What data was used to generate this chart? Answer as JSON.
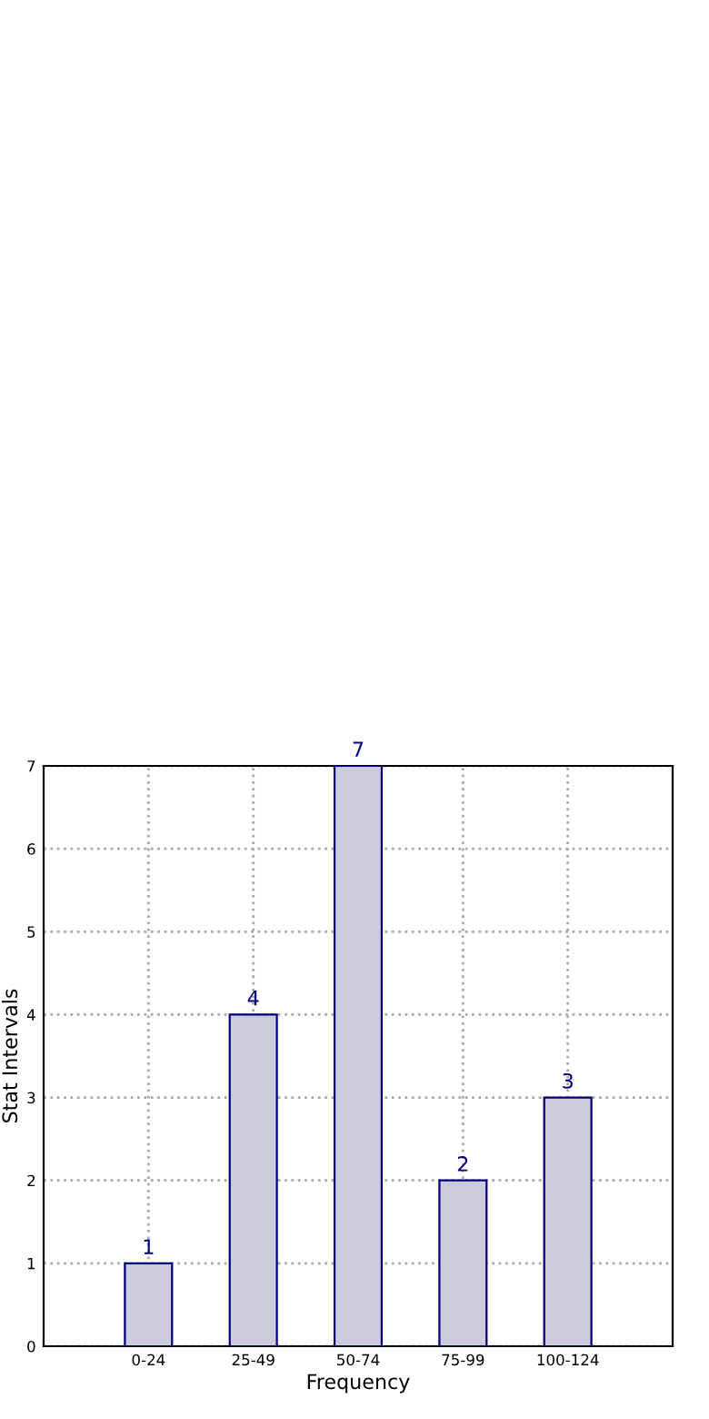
{
  "chart_data": {
    "type": "bar",
    "xlabel": "Frequency",
    "ylabel": "Stat Intervals",
    "categories": [
      "0-24",
      "25-49",
      "50-74",
      "75-99",
      "100-124"
    ],
    "values": [
      1,
      4,
      7,
      2,
      3
    ],
    "color": "#ccccdd",
    "ylim": [
      0,
      7
    ],
    "yticks": [
      0,
      1,
      2,
      3,
      4,
      5,
      6,
      7
    ],
    "grid": true,
    "data_labels": true
  }
}
